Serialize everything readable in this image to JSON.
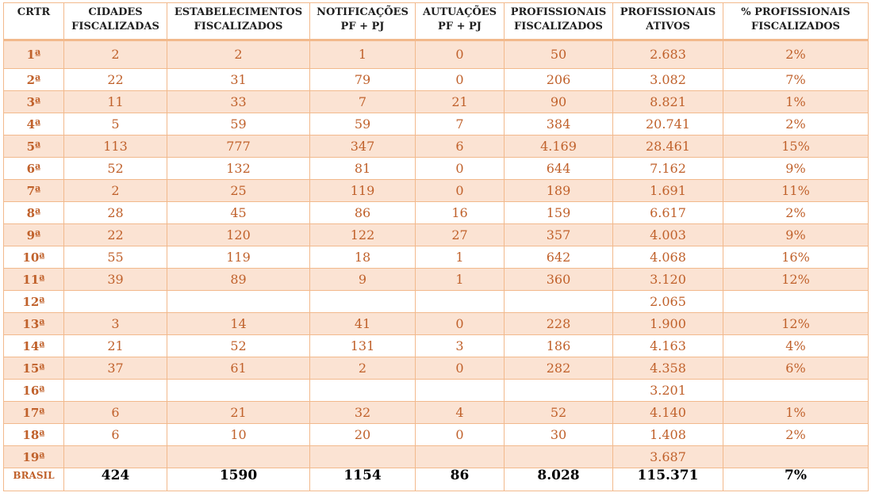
{
  "table": {
    "headers": [
      {
        "line1": "CRTR",
        "line2": ""
      },
      {
        "line1": "CIDADES",
        "line2": "FISCALIZADAS"
      },
      {
        "line1": "ESTABELECIMENTOS",
        "line2": "FISCALIZADOS"
      },
      {
        "line1": "NOTIFICAÇÕES",
        "line2": "PF + PJ"
      },
      {
        "line1": "AUTUAÇÕES",
        "line2": "PF + PJ"
      },
      {
        "line1": "PROFISSIONAIS",
        "line2": "FISCALIZADOS"
      },
      {
        "line1": "PROFISSIONAIS",
        "line2": "ATIVOS"
      },
      {
        "line1": "% PROFISSIONAIS",
        "line2": "FISCALIZADOS"
      }
    ],
    "rows": [
      [
        "1ª",
        "2",
        "2",
        "1",
        "0",
        "50",
        "2.683",
        "2%"
      ],
      [
        "2ª",
        "22",
        "31",
        "79",
        "0",
        "206",
        "3.082",
        "7%"
      ],
      [
        "3ª",
        "11",
        "33",
        "7",
        "21",
        "90",
        "8.821",
        "1%"
      ],
      [
        "4ª",
        "5",
        "59",
        "59",
        "7",
        "384",
        "20.741",
        "2%"
      ],
      [
        "5ª",
        "113",
        "777",
        "347",
        "6",
        "4.169",
        "28.461",
        "15%"
      ],
      [
        "6ª",
        "52",
        "132",
        "81",
        "0",
        "644",
        "7.162",
        "9%"
      ],
      [
        "7ª",
        "2",
        "25",
        "119",
        "0",
        "189",
        "1.691",
        "11%"
      ],
      [
        "8ª",
        "28",
        "45",
        "86",
        "16",
        "159",
        "6.617",
        "2%"
      ],
      [
        "9ª",
        "22",
        "120",
        "122",
        "27",
        "357",
        "4.003",
        "9%"
      ],
      [
        "10ª",
        "55",
        "119",
        "18",
        "1",
        "642",
        "4.068",
        "16%"
      ],
      [
        "11ª",
        "39",
        "89",
        "9",
        "1",
        "360",
        "3.120",
        "12%"
      ],
      [
        "12ª",
        "",
        "",
        "",
        "",
        "",
        "2.065",
        ""
      ],
      [
        "13ª",
        "3",
        "14",
        "41",
        "0",
        "228",
        "1.900",
        "12%"
      ],
      [
        "14ª",
        "21",
        "52",
        "131",
        "3",
        "186",
        "4.163",
        "4%"
      ],
      [
        "15ª",
        "37",
        "61",
        "2",
        "0",
        "282",
        "4.358",
        "6%"
      ],
      [
        "16ª",
        "",
        "",
        "",
        "",
        "",
        "3.201",
        ""
      ],
      [
        "17ª",
        "6",
        "21",
        "32",
        "4",
        "52",
        "4.140",
        "1%"
      ],
      [
        "18ª",
        "6",
        "10",
        "20",
        "0",
        "30",
        "1.408",
        "2%"
      ],
      [
        "19ª",
        "",
        "",
        "",
        "",
        "",
        "3.687",
        ""
      ]
    ],
    "total": [
      "BRASIL",
      "424",
      "1590",
      "1154",
      "86",
      "8.028",
      "115.371",
      "7%"
    ]
  },
  "colors": {
    "accent_text": "#c0612b",
    "row_shade": "#fbe3d3",
    "border": "#f2b98c"
  }
}
